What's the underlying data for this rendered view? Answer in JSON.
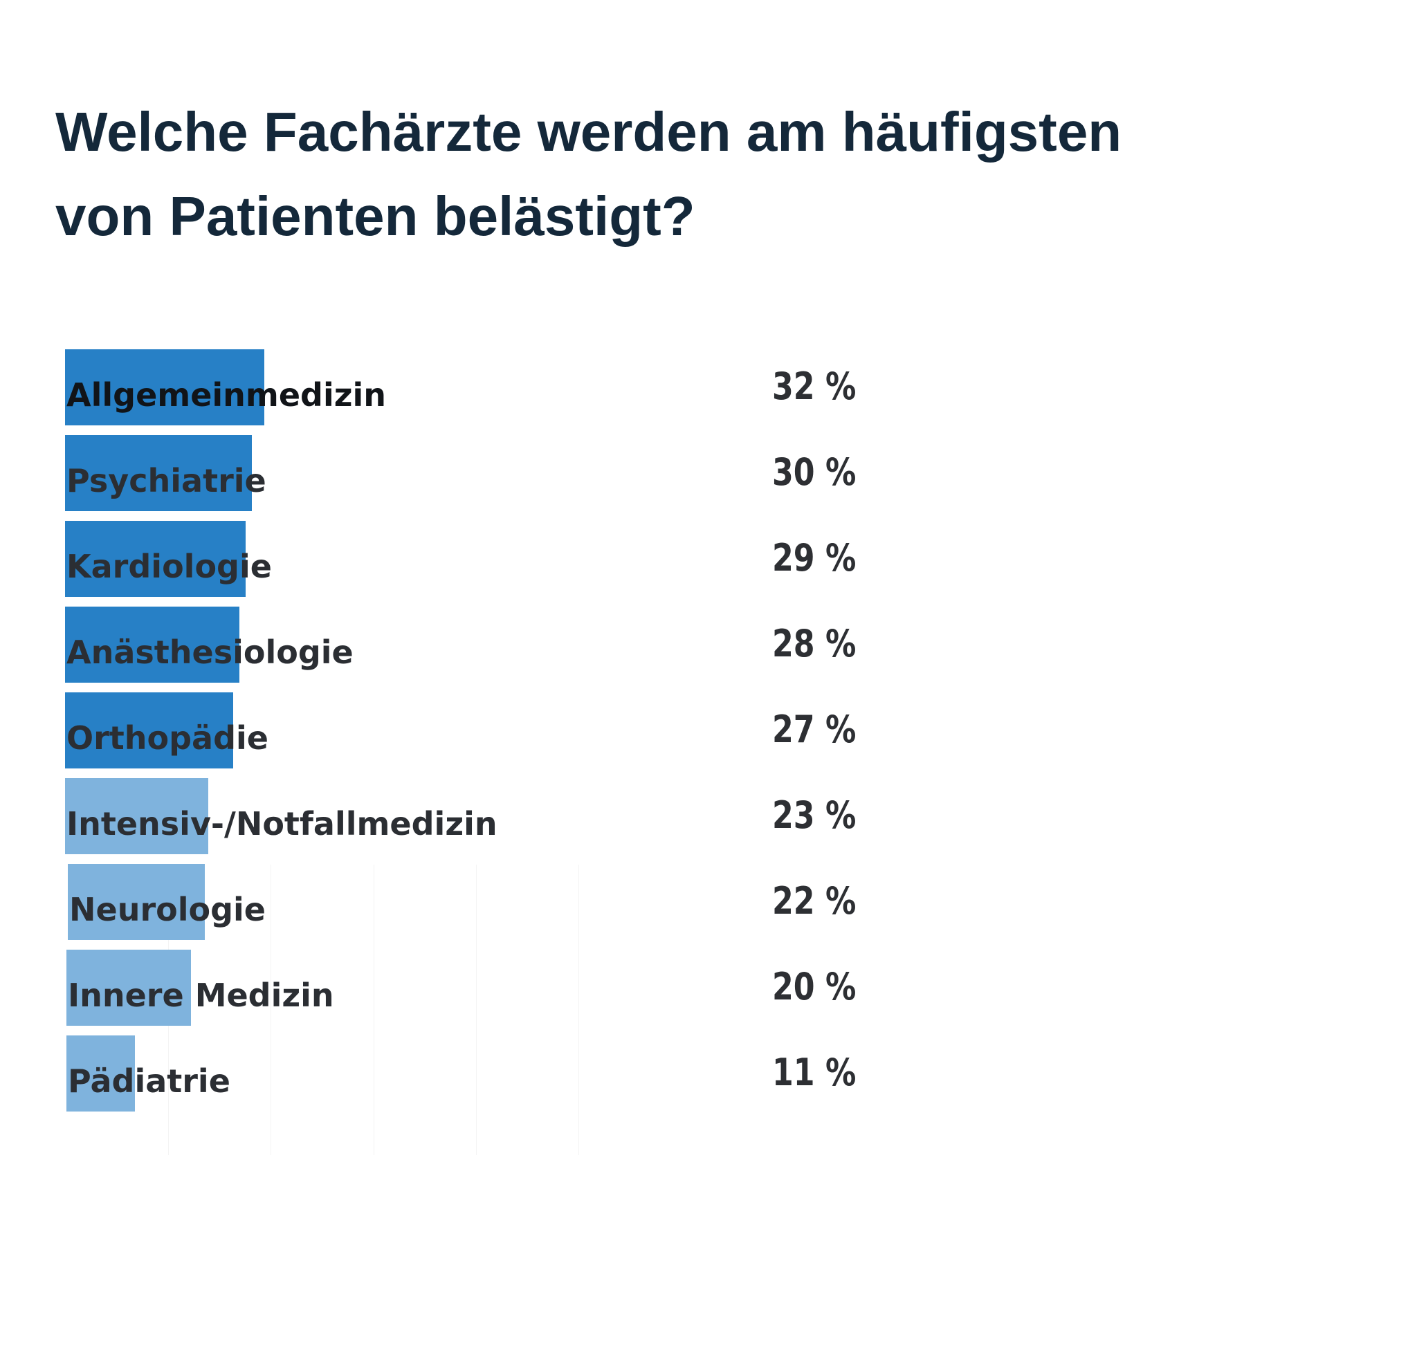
{
  "chart_data": {
    "type": "bar",
    "orientation": "horizontal",
    "title": "Welche Fachärzte werden am häufigsten von Patienten belästigt?",
    "title_lines": [
      "Welche Fachärzte werden am häufigsten",
      "von Patienten belästigt?"
    ],
    "categories": [
      "Allgemeinmedizin",
      "Psychiatrie",
      "Kardiologie",
      "Anästhesiologie",
      "Orthopädie",
      "Intensiv-/Notfallmedizin",
      "Neurologie",
      "Innere Medizin",
      "Pädiatrie"
    ],
    "values": [
      32,
      30,
      29,
      28,
      27,
      23,
      22,
      20,
      11
    ],
    "value_labels": [
      "32 %",
      "30 %",
      "29 %",
      "28 %",
      "27 %",
      "23 %",
      "22 %",
      "20 %",
      "11 %"
    ],
    "unit": "%",
    "xlim": [
      0,
      100
    ],
    "grid": true,
    "legend": "none",
    "colors": {
      "primary": "#2780c6",
      "secondary": "#7fb3dd"
    },
    "bar_colors": [
      "#2780c6",
      "#2780c6",
      "#2780c6",
      "#2780c6",
      "#2780c6",
      "#7fb3dd",
      "#7fb3dd",
      "#7fb3dd",
      "#7fb3dd"
    ]
  }
}
